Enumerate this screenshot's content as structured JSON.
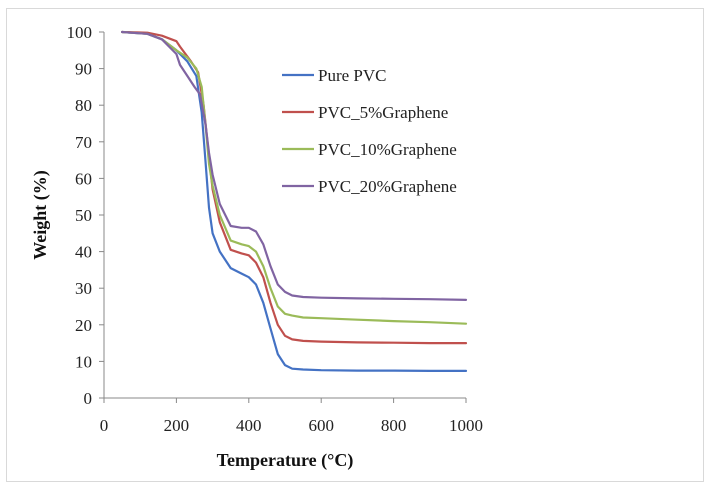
{
  "chart_data": {
    "type": "line",
    "xlabel": "Temperature (°C)",
    "ylabel": "Weight (%)",
    "xlim": [
      0,
      1000
    ],
    "ylim": [
      0,
      100
    ],
    "xticks": [
      0,
      200,
      400,
      600,
      800,
      1000
    ],
    "yticks": [
      0,
      10,
      20,
      30,
      40,
      50,
      60,
      70,
      80,
      90,
      100
    ],
    "x_tick_labels": [
      "0",
      "200",
      "400",
      "600",
      "800",
      "1000"
    ],
    "y_tick_labels": [
      "0",
      "10",
      "20",
      "30",
      "40",
      "50",
      "60",
      "70",
      "80",
      "90",
      "100"
    ],
    "grid": false,
    "legend_position": "upper-right inside plot",
    "series": [
      {
        "name": "Pure PVC",
        "color": "#4472c4",
        "x": [
          50,
          120,
          160,
          200,
          230,
          255,
          270,
          280,
          290,
          300,
          320,
          350,
          380,
          400,
          420,
          440,
          460,
          480,
          500,
          520,
          550,
          600,
          700,
          800,
          900,
          1000
        ],
        "y": [
          100,
          99.5,
          98,
          95,
          92,
          88,
          78,
          65,
          52,
          45,
          40,
          35.5,
          34,
          33,
          31,
          26,
          19,
          12,
          9,
          8,
          7.8,
          7.6,
          7.5,
          7.5,
          7.4,
          7.4
        ]
      },
      {
        "name": "PVC_5%Graphene",
        "color": "#c0504d",
        "x": [
          50,
          120,
          160,
          200,
          210,
          240,
          260,
          275,
          290,
          300,
          320,
          350,
          380,
          400,
          420,
          440,
          460,
          480,
          500,
          520,
          550,
          600,
          700,
          800,
          900,
          1000
        ],
        "y": [
          100,
          99.8,
          99,
          97.5,
          96,
          92,
          89,
          80,
          66,
          57,
          48,
          40.5,
          39.5,
          39,
          37,
          33,
          26,
          20,
          17,
          16,
          15.6,
          15.4,
          15.2,
          15.1,
          15,
          15
        ]
      },
      {
        "name": "PVC_10%Graphene",
        "color": "#9bbb59",
        "x": [
          50,
          120,
          160,
          200,
          230,
          255,
          270,
          280,
          290,
          300,
          320,
          350,
          380,
          400,
          420,
          440,
          460,
          480,
          500,
          520,
          550,
          600,
          700,
          800,
          900,
          1000
        ],
        "y": [
          100,
          99.5,
          98,
          95,
          93,
          90,
          85,
          75,
          64,
          58,
          50,
          43,
          42,
          41.5,
          40,
          36,
          30,
          25,
          23,
          22.5,
          22,
          21.8,
          21.4,
          21,
          20.7,
          20.3
        ]
      },
      {
        "name": "PVC_20%Graphene",
        "color": "#8064a2",
        "x": [
          50,
          120,
          160,
          200,
          210,
          230,
          250,
          265,
          280,
          290,
          300,
          320,
          350,
          380,
          400,
          420,
          440,
          460,
          480,
          500,
          520,
          550,
          600,
          700,
          800,
          900,
          1000
        ],
        "y": [
          100,
          99.5,
          98,
          94,
          91,
          88,
          85,
          83,
          75,
          67,
          61,
          53,
          47,
          46.5,
          46.5,
          45.5,
          42,
          36,
          31,
          29,
          28,
          27.6,
          27.4,
          27.2,
          27.1,
          27,
          26.8
        ]
      }
    ]
  }
}
